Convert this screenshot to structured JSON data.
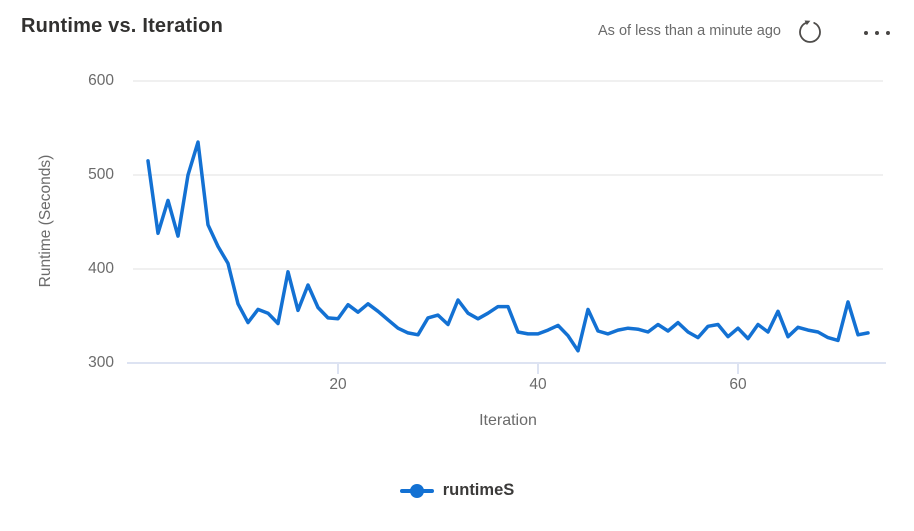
{
  "header": {
    "title": "Runtime vs. Iteration",
    "as_of": "As of less than a minute ago",
    "refresh_icon": "refresh-icon",
    "more_options_icon": "more-options-icon"
  },
  "chart_data": {
    "type": "line",
    "title": "Runtime vs. Iteration",
    "xlabel": "Iteration",
    "ylabel": "Runtime (Seconds)",
    "x_ticks": [
      "20",
      "40",
      "60"
    ],
    "y_ticks": [
      "600",
      "500",
      "400",
      "300"
    ],
    "xlim": [
      0,
      75
    ],
    "ylim": [
      300,
      600
    ],
    "grid": "horizontal-only",
    "legend_position": "bottom",
    "line_color": "#1371d3",
    "series": [
      {
        "name": "runtimeS",
        "x": [
          1,
          2,
          3,
          4,
          5,
          6,
          7,
          8,
          9,
          10,
          11,
          12,
          13,
          14,
          15,
          16,
          17,
          18,
          19,
          20,
          21,
          22,
          23,
          24,
          25,
          26,
          27,
          28,
          29,
          30,
          31,
          32,
          33,
          34,
          35,
          36,
          37,
          38,
          39,
          40,
          41,
          42,
          43,
          44,
          45,
          46,
          47,
          48,
          49,
          50,
          51,
          52,
          53,
          54,
          55,
          56,
          57,
          58,
          59,
          60,
          61,
          62,
          63,
          64,
          65,
          66,
          67,
          68,
          69,
          70,
          71,
          72,
          73
        ],
        "y": [
          515,
          438,
          473,
          435,
          500,
          535,
          447,
          424,
          406,
          363,
          343,
          357,
          353,
          342,
          397,
          356,
          383,
          359,
          348,
          347,
          362,
          354,
          363,
          355,
          346,
          337,
          332,
          330,
          348,
          351,
          341,
          367,
          353,
          347,
          353,
          360,
          360,
          333,
          331,
          331,
          335,
          340,
          329,
          313,
          357,
          334,
          331,
          335,
          337,
          336,
          333,
          341,
          334,
          343,
          333,
          327,
          339,
          341,
          328,
          337,
          326,
          341,
          333,
          355,
          328,
          338,
          335,
          333,
          327,
          324,
          365,
          330,
          332
        ]
      }
    ]
  }
}
